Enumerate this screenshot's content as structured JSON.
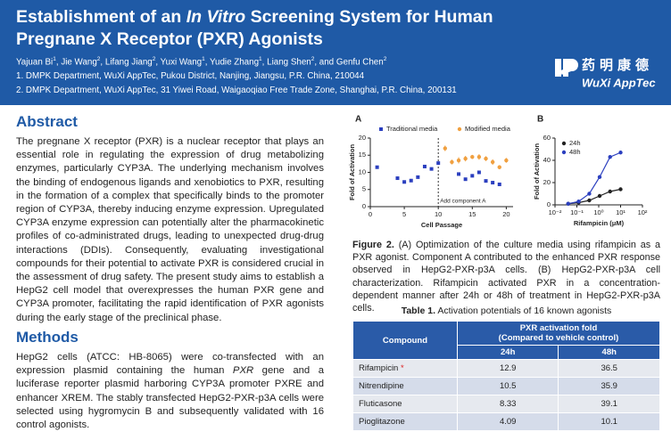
{
  "header": {
    "title": [
      "Establishment of an ",
      "In Vitro",
      " Screening System for Human Pregnane X Receptor (PXR) Agonists"
    ],
    "authors": [
      {
        "name": "Yajuan Bi",
        "sup": "1",
        "sep": ","
      },
      {
        "name": "Jie Wang",
        "sup": "2",
        "sep": ","
      },
      {
        "name": "Lifang Jiang",
        "sup": "2",
        "sep": ","
      },
      {
        "name": "Yuxi Wang",
        "sup": "1",
        "sep": ","
      },
      {
        "name": "Yudie Zhang",
        "sup": "1",
        "sep": ","
      },
      {
        "name": "Liang Shen",
        "sup": "2",
        "sep": ", and"
      },
      {
        "name": "Genfu Chen",
        "sup": "2"
      }
    ],
    "affiliations": [
      "1. DMPK Department, WuXi AppTec, Pukou District, Nanjing, Jiangsu, P.R. China, 210044",
      "2. DMPK Department, WuXi AppTec, 31 Yiwei Road, Waigaoqiao Free Trade Zone, Shanghai, P.R. China, 200131"
    ],
    "logo_cn": "药明康德",
    "logo_en": "WuXi AppTec"
  },
  "abstract": {
    "heading": "Abstract",
    "text": "The pregnane X receptor (PXR) is a nuclear receptor that plays an essential role in regulating the expression of drug metabolizing enzymes, particularly CYP3A. The underlying mechanism involves the binding of endogenous ligands and xenobiotics to PXR, resulting in the formation of a complex that specifically binds to the promoter region of CYP3A, thereby inducing enzyme expression. Upregulated CYP3A enzyme expression can potentially alter the pharmacokinetic profiles of co-administrated drugs, leading to unexpected drug-drug interactions (DDIs). Consequently, evaluating investigational compounds for their potential to activate PXR is considered crucial in the assessment of drug safety. The present study aims to establish a HepG2 cell model that overexpresses the human PXR gene and CYP3A promoter, facilitating the rapid identification of PXR agonists during the early stage of the preclinical phase."
  },
  "methods": {
    "heading": "Methods",
    "text": [
      "HepG2 cells (ATCC: HB-8065) were co-transfected with an expression plasmid containing the human ",
      "PXR",
      " gene and a luciferase reporter plasmid harboring CYP3A promoter PXRE and enhancer XREM. The stably transfected HepG2-PXR-p3A cells were selected using hygromycin B and subsequently validated with 16 control agonists."
    ]
  },
  "figure": {
    "charts": [
      {
        "type": "scatter",
        "panel": "A",
        "x_label": "Cell Passage",
        "y_label": "Fold of Activation",
        "xlim": [
          0,
          21
        ],
        "ylim": [
          0,
          20
        ],
        "xticks": [
          0,
          5,
          10,
          15,
          20
        ],
        "yticks": [
          0,
          5,
          10,
          15,
          20
        ],
        "legend": "top",
        "annotation": "Add component A",
        "annotation_x": 10,
        "series": [
          {
            "name": "Traditional media",
            "color": "#2b3fbf",
            "marker": "square",
            "x": [
              1,
              4,
              5,
              6,
              7,
              8,
              9,
              10,
              13,
              14,
              15,
              16,
              17,
              18,
              19
            ],
            "values": [
              11.5,
              8.3,
              7.2,
              7.6,
              8.6,
              11.7,
              11,
              12.7,
              9.5,
              8,
              9,
              10,
              7.5,
              7,
              6.5
            ]
          },
          {
            "name": "Modified media",
            "color": "#f0a040",
            "marker": "circle",
            "x": [
              11,
              12,
              13,
              14,
              15,
              16,
              17,
              18,
              19,
              20
            ],
            "values": [
              17,
              13,
              13.5,
              14,
              14.5,
              14.5,
              14,
              13,
              11.5,
              13.5
            ],
            "errors": [
              0.8,
              0.7,
              0.9,
              0.8,
              0.6,
              0.8,
              0.7,
              0.8,
              0.6,
              0.7
            ]
          }
        ]
      },
      {
        "type": "line",
        "panel": "B",
        "x_label": "Rifampicin (μM)",
        "y_label": "Fold of Activation",
        "log_x": true,
        "xlim": [
          0.01,
          100
        ],
        "ylim": [
          0,
          60
        ],
        "xticks": [
          {
            "value": 0.01,
            "label": "10⁻²"
          },
          {
            "value": 0.1,
            "label": "10⁻¹"
          },
          {
            "value": 1,
            "label": "10⁰"
          },
          {
            "value": 10,
            "label": "10¹"
          },
          {
            "value": 100,
            "label": "10²"
          }
        ],
        "yticks": [
          0,
          20,
          40,
          60
        ],
        "legend": "upper-left",
        "series": [
          {
            "name": "24h",
            "color": "#222222",
            "marker": "circle",
            "x": [
              0.04,
              0.12,
              0.37,
              1.1,
              3.3,
              10
            ],
            "values": [
              1,
              2,
              4,
              8,
              12,
              14
            ]
          },
          {
            "name": "48h",
            "color": "#2b3fbf",
            "marker": "circle",
            "x": [
              0.04,
              0.12,
              0.37,
              1.1,
              3.3,
              10
            ],
            "values": [
              1,
              3,
              10,
              25,
              43,
              47
            ]
          }
        ]
      }
    ],
    "caption_label": "Figure 2.",
    "caption": " (A) Optimization of the culture media using rifampicin as a PXR agonist. Component A contributed to the enhanced PXR response observed in HepG2-PXR-p3A cells. (B) HepG2-PXR-p3A cell characterization. Rifampicin activated PXR in a concentration-dependent manner after 24h or 48h of treatment in HepG2-PXR-p3A cells."
  },
  "table": {
    "title_label": "Table 1.",
    "title": " Activation potentials of 16 known agonists",
    "header": {
      "compound": "Compound",
      "group": "PXR activation fold",
      "group_sub": "(Compared to vehicle control)",
      "c24": "24h",
      "c48": "48h"
    },
    "rows": [
      {
        "compound": "Rifampicin",
        "mark": "*",
        "v24": 12.9,
        "v48": 36.5
      },
      {
        "compound": "Nitrendipine",
        "v24": 10.5,
        "v48": 35.9
      },
      {
        "compound": "Fluticasone",
        "v24": 8.33,
        "v48": 39.1
      },
      {
        "compound": "Pioglitazone",
        "v24": 4.09,
        "v48": 10.1
      }
    ]
  }
}
